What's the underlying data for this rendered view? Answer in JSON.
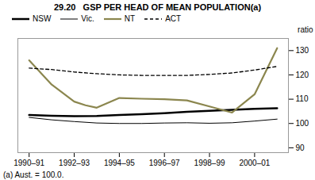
{
  "chart_data": {
    "type": "line",
    "title": "29.20   GSP PER HEAD OF MEAN POPULATION(a)",
    "y_label": "ratio",
    "footnote": "(a) Aust. = 100.0.",
    "xlim": [
      1989.5,
      2001.5
    ],
    "xticks": [
      {
        "value": 1990,
        "label": "1990–91"
      },
      {
        "value": 1992,
        "label": "1992–93"
      },
      {
        "value": 1994,
        "label": "1994–95"
      },
      {
        "value": 1996,
        "label": "1996–97"
      },
      {
        "value": 1998,
        "label": "1998–99"
      },
      {
        "value": 2000,
        "label": "2000–01"
      }
    ],
    "ylim": [
      88,
      135
    ],
    "yticks": [
      90,
      100,
      110,
      120,
      130
    ],
    "grid": false,
    "legend": "top",
    "series": [
      {
        "name": "NSW",
        "color": "#000000",
        "line_style": "solid",
        "x": [
          1990,
          1991,
          1992,
          1993,
          1994,
          1995,
          1996,
          1997,
          1998,
          1999,
          2000,
          2001
        ],
        "values": [
          103.5,
          103.2,
          103.0,
          103.1,
          103.5,
          103.8,
          104.2,
          104.8,
          105.2,
          105.6,
          106.0,
          106.3
        ]
      },
      {
        "name": "Vic.",
        "color": "#000000",
        "line_style": "solid",
        "x": [
          1990,
          1991,
          1992,
          1993,
          1994,
          1995,
          1996,
          1997,
          1998,
          1999,
          2000,
          2001
        ],
        "values": [
          102.5,
          101.5,
          100.8,
          100.2,
          100.0,
          100.0,
          100.2,
          100.3,
          100.1,
          100.3,
          101.0,
          101.8
        ]
      },
      {
        "name": "NT",
        "color": "#8B864E",
        "line_style": "solid",
        "x": [
          1990,
          1991,
          1992,
          1992.5,
          1993,
          1994,
          1995,
          1996,
          1997,
          1998,
          1999,
          2000,
          2001
        ],
        "values": [
          126.0,
          116.0,
          109.0,
          107.5,
          106.5,
          110.5,
          110.2,
          110.0,
          109.5,
          107.0,
          104.5,
          112.0,
          131.0
        ]
      },
      {
        "name": "ACT",
        "color": "#000000",
        "line_style": "dashed",
        "x": [
          1990,
          1991,
          1992,
          1993,
          1994,
          1995,
          1996,
          1997,
          1998,
          1999,
          2000,
          2001
        ],
        "values": [
          122.8,
          122.2,
          121.2,
          120.5,
          120.0,
          119.8,
          119.8,
          119.8,
          120.2,
          120.8,
          122.0,
          123.5
        ]
      }
    ]
  }
}
